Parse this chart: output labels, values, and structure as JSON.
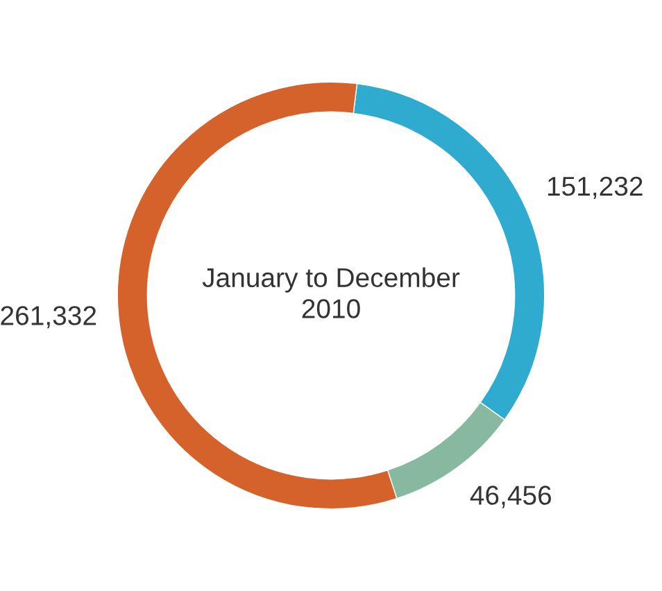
{
  "chart_data": {
    "type": "donut",
    "title": "January to December\n2010",
    "categories": [
      null,
      null,
      null
    ],
    "values": [
      151232,
      46456,
      261332
    ],
    "colors": [
      "#2eabcf",
      "#86b9a0",
      "#d4622a"
    ],
    "value_labels": [
      "151,232",
      "46,456",
      "261,332"
    ],
    "legend": false
  }
}
